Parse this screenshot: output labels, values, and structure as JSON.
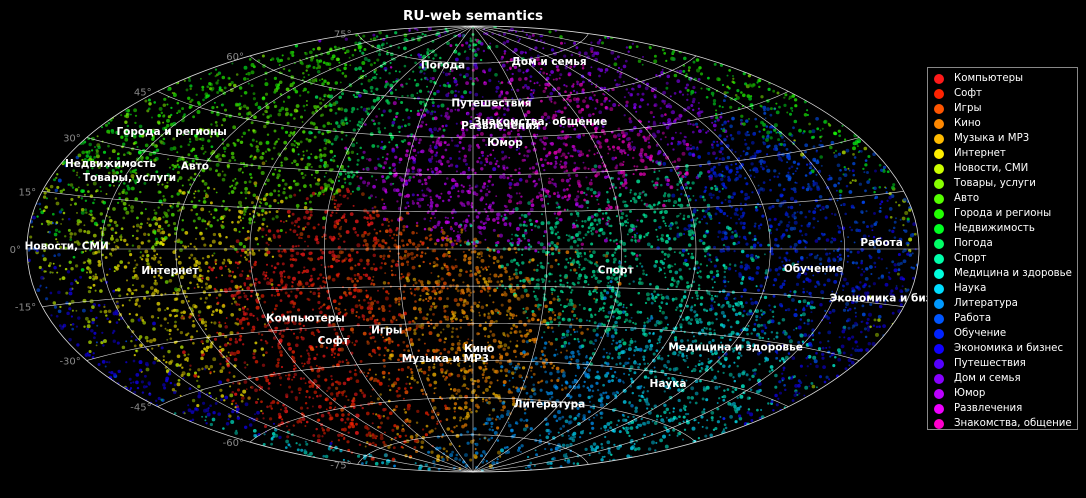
{
  "chart_data": {
    "type": "scatter",
    "projection": "aitoff",
    "title": "RU-web semantics",
    "grid": true,
    "legend_position": "right",
    "lat_ticks": [
      "75°",
      "60°",
      "45°",
      "30°",
      "15°",
      "0°",
      "-15°",
      "-30°",
      "-45°",
      "-60°",
      "-75°"
    ],
    "lat_values": [
      75,
      60,
      45,
      30,
      15,
      0,
      -15,
      -30,
      -45,
      -60,
      -75
    ],
    "categories": [
      {
        "name": "Компьютеры",
        "color": "#ff1a1a",
        "lon": -73,
        "lat": -26
      },
      {
        "name": "Софт",
        "color": "#ff2200",
        "lon": -65,
        "lat": -35
      },
      {
        "name": "Игры",
        "color": "#ff5500",
        "lon": -39,
        "lat": -32
      },
      {
        "name": "Кино",
        "color": "#ff8800",
        "lon": 3,
        "lat": -40
      },
      {
        "name": "Музыка и MP3",
        "color": "#ffbb00",
        "lon": -14,
        "lat": -44
      },
      {
        "name": "Интернет",
        "color": "#ffee00",
        "lon": -123,
        "lat": -7
      },
      {
        "name": "Новости, СМИ",
        "color": "#ccff00",
        "lon": -164,
        "lat": 1
      },
      {
        "name": "Товары, услуги",
        "color": "#88ff00",
        "lon": -148,
        "lat": 22
      },
      {
        "name": "Авто",
        "color": "#55ff00",
        "lon": -124,
        "lat": 28
      },
      {
        "name": "Города и регионы",
        "color": "#22ff00",
        "lon": -148,
        "lat": 37
      },
      {
        "name": "Недвижимость",
        "color": "#00ff22",
        "lon": -160,
        "lat": 25
      },
      {
        "name": "Погода",
        "color": "#00ff66",
        "lon": -33,
        "lat": 74
      },
      {
        "name": "Спорт",
        "color": "#00ffaa",
        "lon": 58,
        "lat": -8
      },
      {
        "name": "Медицина и здоровье",
        "color": "#00ffdd",
        "lon": 122,
        "lat": -33
      },
      {
        "name": "Наука",
        "color": "#00ddff",
        "lon": 108,
        "lat": -48
      },
      {
        "name": "Литература",
        "color": "#0099ff",
        "lon": 53,
        "lat": -61
      },
      {
        "name": "Работа",
        "color": "#0055ff",
        "lon": 165,
        "lat": 2
      },
      {
        "name": "Обучение",
        "color": "#0022ff",
        "lon": 138,
        "lat": -6
      },
      {
        "name": "Экономика и бизнес",
        "color": "#1100ff",
        "lon": 173,
        "lat": -13
      },
      {
        "name": "Путешествия",
        "color": "#5500ff",
        "lon": 12,
        "lat": 59
      },
      {
        "name": "Дом и семья",
        "color": "#8800ff",
        "lon": 83,
        "lat": 73
      },
      {
        "name": "Юмор",
        "color": "#bb00ff",
        "lon": 16,
        "lat": 43
      },
      {
        "name": "Развлечения",
        "color": "#ee00ff",
        "lon": 15,
        "lat": 50
      },
      {
        "name": "Знакомства, общение",
        "color": "#ff00cc",
        "lon": 38,
        "lat": 51
      }
    ]
  }
}
